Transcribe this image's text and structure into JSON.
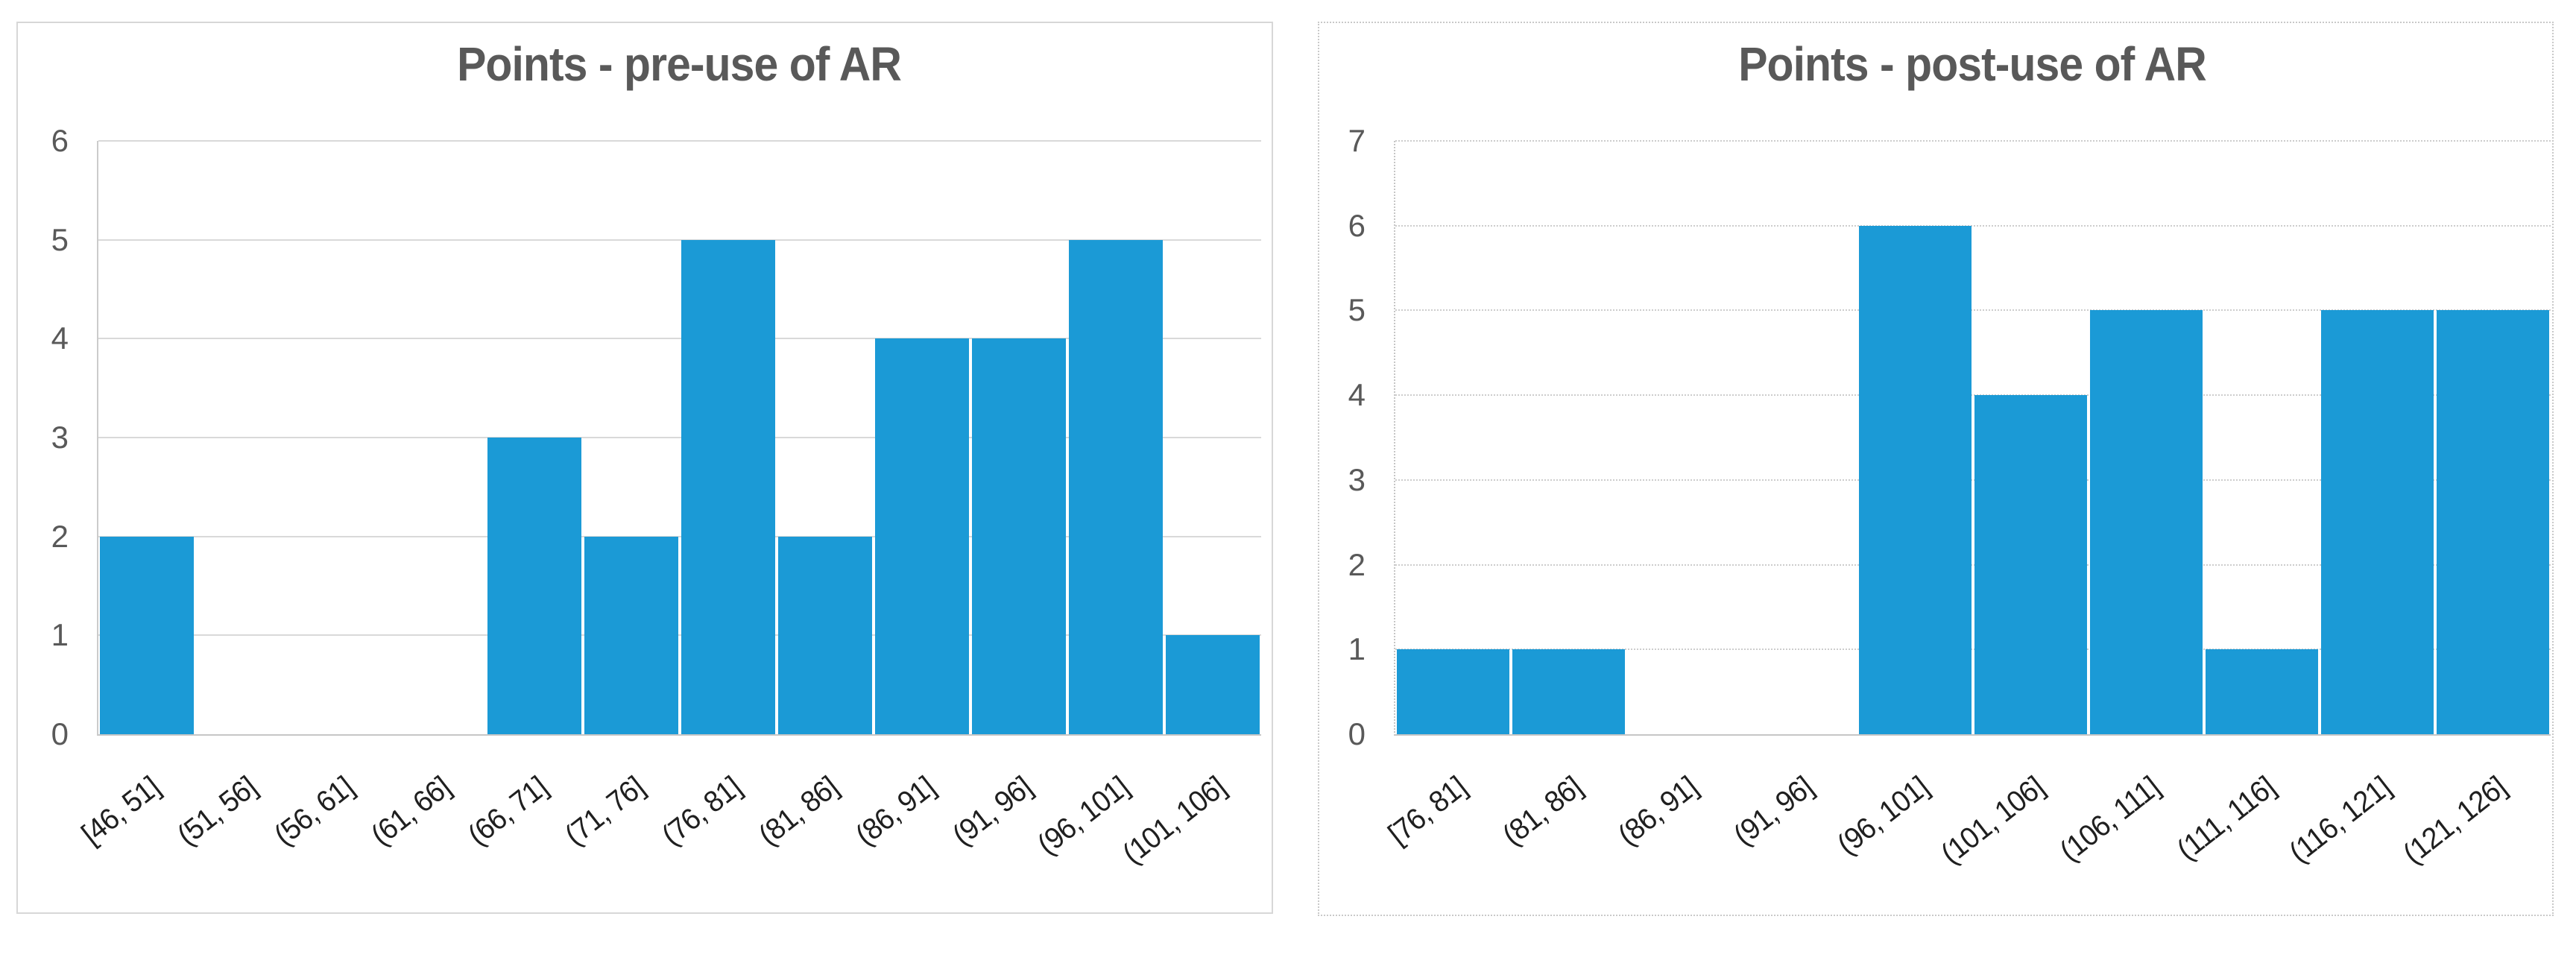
{
  "chart_data": [
    {
      "type": "bar",
      "subtype": "histogram",
      "title": "Points - pre-use of AR",
      "categories": [
        "[46, 51]",
        "(51, 56]",
        "(56, 61]",
        "(61, 66]",
        "(66, 71]",
        "(71, 76]",
        "(76, 81]",
        "(81, 86]",
        "(86, 91]",
        "(91, 96]",
        "(96, 101]",
        "(101, 106]"
      ],
      "values": [
        2,
        0,
        0,
        0,
        3,
        2,
        5,
        2,
        4,
        4,
        5,
        1
      ],
      "xlabel": "",
      "ylabel": "",
      "ylim": [
        0,
        6
      ],
      "yticks": [
        0,
        1,
        2,
        3,
        4,
        5,
        6
      ],
      "grid": "solid",
      "panel_border": "solid",
      "bar_color": "#1b9ad6",
      "legend": false
    },
    {
      "type": "bar",
      "subtype": "histogram",
      "title": "Points - post-use of AR",
      "categories": [
        "[76, 81]",
        "(81, 86]",
        "(86, 91]",
        "(91, 96]",
        "(96, 101]",
        "(101, 106]",
        "(106, 111]",
        "(111, 116]",
        "(116, 121]",
        "(121, 126]"
      ],
      "values": [
        1,
        1,
        0,
        0,
        6,
        4,
        5,
        1,
        5,
        5
      ],
      "xlabel": "",
      "ylabel": "",
      "ylim": [
        0,
        7
      ],
      "yticks": [
        0,
        1,
        2,
        3,
        4,
        5,
        6,
        7
      ],
      "grid": "dotted",
      "panel_border": "dotted",
      "bar_color": "#1b9ad6",
      "legend": false
    }
  ],
  "colors": {
    "bar": "#1b9ad6",
    "title_text": "#595959",
    "y_tick_text": "#595959",
    "x_tick_text": "#1f1f1f",
    "gridline_solid": "#d9d9d9",
    "gridline_dotted": "#cdcdcd",
    "axis_line": "#c6c6c6",
    "panel_border": "#d0d0d0",
    "background": "#ffffff"
  }
}
